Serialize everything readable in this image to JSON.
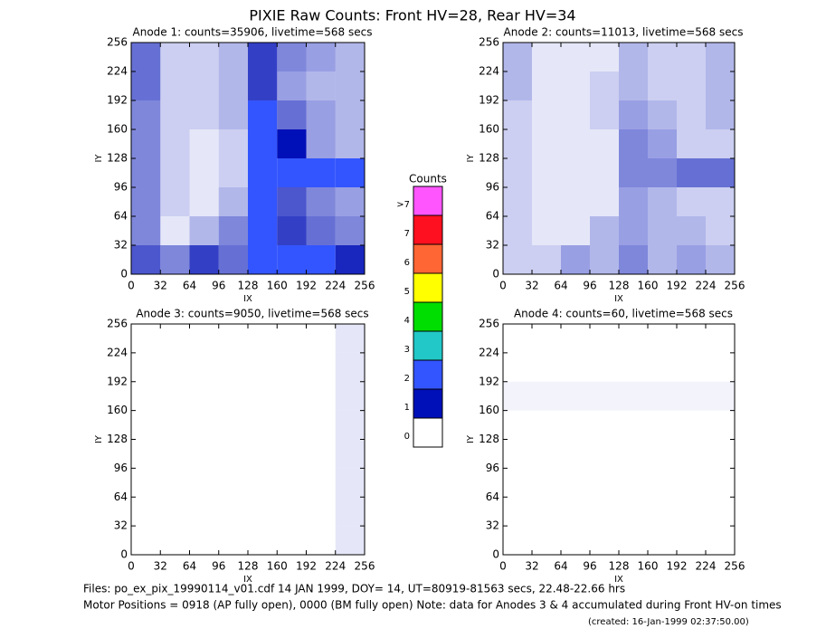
{
  "title": "PIXIE Raw Counts:  Front HV=28, Rear HV=34",
  "footer": {
    "files": "Files: po_ex_pix_19990114_v01.cdf    14 JAN 1999, DOY= 14, UT=80919-81563 secs, 22.48-22.66 hrs",
    "motor": "Motor Positions = 0918 (AP fully open), 0000 (BM fully open)    Note: data for Anodes 3 & 4 accumulated during Front HV-on times",
    "created": "(created: 16-Jan-1999 02:37:50.00)"
  },
  "colorbar": {
    "title": "Counts",
    "levels": [
      0,
      1,
      2,
      3,
      4,
      5,
      6,
      7,
      {
        "value": 8,
        "label": ">7"
      }
    ],
    "colors": [
      "#ffffff",
      "#0010b8",
      "#3355ff",
      "#22c8c8",
      "#00dd00",
      "#ffff00",
      "#ff6633",
      "#ff1020",
      "#ff55ff"
    ]
  },
  "chart_data": [
    {
      "type": "heatmap",
      "title": "Anode 1: counts=35906, livetime=568 secs",
      "xlabel": "IX",
      "ylabel": "IY",
      "xlim": [
        0,
        256
      ],
      "ylim": [
        0,
        256
      ],
      "xticks": [
        0,
        32,
        64,
        96,
        128,
        160,
        192,
        224,
        256
      ],
      "yticks": [
        0,
        32,
        64,
        96,
        128,
        160,
        192,
        224,
        256
      ],
      "z": [
        [
          0.6,
          0.2,
          0.2,
          0.3,
          0.8,
          0.5,
          0.4,
          0.3
        ],
        [
          0.6,
          0.2,
          0.2,
          0.3,
          0.8,
          0.4,
          0.3,
          0.3
        ],
        [
          0.5,
          0.2,
          0.2,
          0.3,
          1.2,
          0.6,
          0.4,
          0.3
        ],
        [
          0.5,
          0.2,
          0.1,
          0.2,
          1.5,
          1.0,
          0.4,
          0.3
        ],
        [
          0.5,
          0.2,
          0.1,
          0.2,
          1.5,
          1.3,
          1.4,
          1.3
        ],
        [
          0.5,
          0.2,
          0.1,
          0.3,
          1.4,
          0.7,
          0.5,
          0.4
        ],
        [
          0.5,
          0.1,
          0.3,
          0.5,
          1.3,
          0.8,
          0.6,
          0.5
        ],
        [
          0.7,
          0.5,
          0.8,
          0.6,
          1.5,
          1.2,
          1.2,
          0.9
        ]
      ]
    },
    {
      "type": "heatmap",
      "title": "Anode 2: counts=11013, livetime=568 secs",
      "xlabel": "IX",
      "ylabel": "IY",
      "xlim": [
        0,
        256
      ],
      "ylim": [
        0,
        256
      ],
      "xticks": [
        0,
        32,
        64,
        96,
        128,
        160,
        192,
        224,
        256
      ],
      "yticks": [
        0,
        32,
        64,
        96,
        128,
        160,
        192,
        224,
        256
      ],
      "z": [
        [
          0.3,
          0.1,
          0.1,
          0.1,
          0.3,
          0.2,
          0.2,
          0.3
        ],
        [
          0.3,
          0.1,
          0.1,
          0.2,
          0.3,
          0.2,
          0.2,
          0.3
        ],
        [
          0.2,
          0.1,
          0.1,
          0.2,
          0.4,
          0.3,
          0.2,
          0.3
        ],
        [
          0.2,
          0.1,
          0.1,
          0.1,
          0.5,
          0.4,
          0.2,
          0.2
        ],
        [
          0.2,
          0.1,
          0.1,
          0.1,
          0.5,
          0.5,
          0.6,
          0.6
        ],
        [
          0.2,
          0.1,
          0.1,
          0.1,
          0.4,
          0.3,
          0.2,
          0.2
        ],
        [
          0.2,
          0.1,
          0.1,
          0.3,
          0.4,
          0.3,
          0.3,
          0.2
        ],
        [
          0.2,
          0.2,
          0.4,
          0.3,
          0.5,
          0.3,
          0.4,
          0.3
        ]
      ]
    },
    {
      "type": "heatmap",
      "title": "Anode 3: counts=9050, livetime=568 secs",
      "xlabel": "IX",
      "ylabel": "IY",
      "xlim": [
        0,
        256
      ],
      "ylim": [
        0,
        256
      ],
      "xticks": [
        0,
        32,
        64,
        96,
        128,
        160,
        192,
        224,
        256
      ],
      "yticks": [
        0,
        32,
        64,
        96,
        128,
        160,
        192,
        224,
        256
      ],
      "z": [
        [
          0,
          0,
          0,
          0,
          0,
          0,
          0,
          0.1
        ],
        [
          0,
          0,
          0,
          0,
          0,
          0,
          0,
          0.1
        ],
        [
          0,
          0,
          0,
          0,
          0,
          0,
          0,
          0.1
        ],
        [
          0,
          0,
          0,
          0,
          0,
          0,
          0,
          0.1
        ],
        [
          0,
          0,
          0,
          0,
          0,
          0,
          0,
          0.1
        ],
        [
          0,
          0,
          0,
          0,
          0,
          0,
          0,
          0.1
        ],
        [
          0,
          0,
          0,
          0,
          0,
          0,
          0,
          0.1
        ],
        [
          0,
          0,
          0,
          0,
          0,
          0,
          0,
          0.1
        ]
      ]
    },
    {
      "type": "heatmap",
      "title": "Anode 4: counts=60, livetime=568 secs",
      "xlabel": "IX",
      "ylabel": "IY",
      "xlim": [
        0,
        256
      ],
      "ylim": [
        0,
        256
      ],
      "xticks": [
        0,
        32,
        64,
        96,
        128,
        160,
        192,
        224,
        256
      ],
      "yticks": [
        0,
        32,
        64,
        96,
        128,
        160,
        192,
        224,
        256
      ],
      "z": [
        [
          0,
          0,
          0,
          0,
          0,
          0,
          0,
          0
        ],
        [
          0,
          0,
          0,
          0,
          0,
          0,
          0,
          0
        ],
        [
          0.05,
          0.05,
          0.05,
          0.05,
          0.05,
          0.05,
          0.05,
          0.05
        ],
        [
          0,
          0,
          0,
          0,
          0,
          0,
          0,
          0
        ],
        [
          0,
          0,
          0,
          0,
          0,
          0,
          0,
          0
        ],
        [
          0,
          0,
          0,
          0,
          0,
          0,
          0,
          0
        ],
        [
          0,
          0,
          0,
          0,
          0,
          0,
          0,
          0
        ],
        [
          0,
          0,
          0,
          0,
          0,
          0,
          0,
          0
        ]
      ]
    }
  ]
}
